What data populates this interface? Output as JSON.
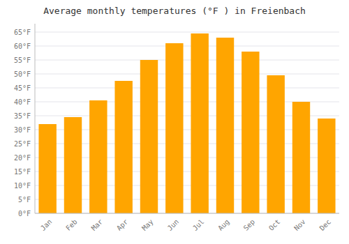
{
  "chart_data": {
    "type": "bar",
    "title": "Average monthly temperatures (°F ) in Freienbach",
    "categories": [
      "Jan",
      "Feb",
      "Mar",
      "Apr",
      "May",
      "Jun",
      "Jul",
      "Aug",
      "Sep",
      "Oct",
      "Nov",
      "Dec"
    ],
    "values": [
      32,
      34.5,
      40.5,
      47.5,
      55,
      61,
      64.5,
      63,
      58,
      49.5,
      40,
      34
    ],
    "color": "#FFA500",
    "ylim": [
      0,
      68
    ],
    "yticks": [
      {
        "value": 0,
        "label": "0°F"
      },
      {
        "value": 5,
        "label": "5°F"
      },
      {
        "value": 10,
        "label": "10°F"
      },
      {
        "value": 15,
        "label": "15°F"
      },
      {
        "value": 20,
        "label": "20°F"
      },
      {
        "value": 25,
        "label": "25°F"
      },
      {
        "value": 30,
        "label": "30°F"
      },
      {
        "value": 35,
        "label": "35°F"
      },
      {
        "value": 40,
        "label": "40°F"
      },
      {
        "value": 45,
        "label": "45°F"
      },
      {
        "value": 50,
        "label": "50°F"
      },
      {
        "value": 55,
        "label": "55°F"
      },
      {
        "value": 60,
        "label": "60°F"
      },
      {
        "value": 65,
        "label": "65°F"
      }
    ],
    "grid": true
  }
}
